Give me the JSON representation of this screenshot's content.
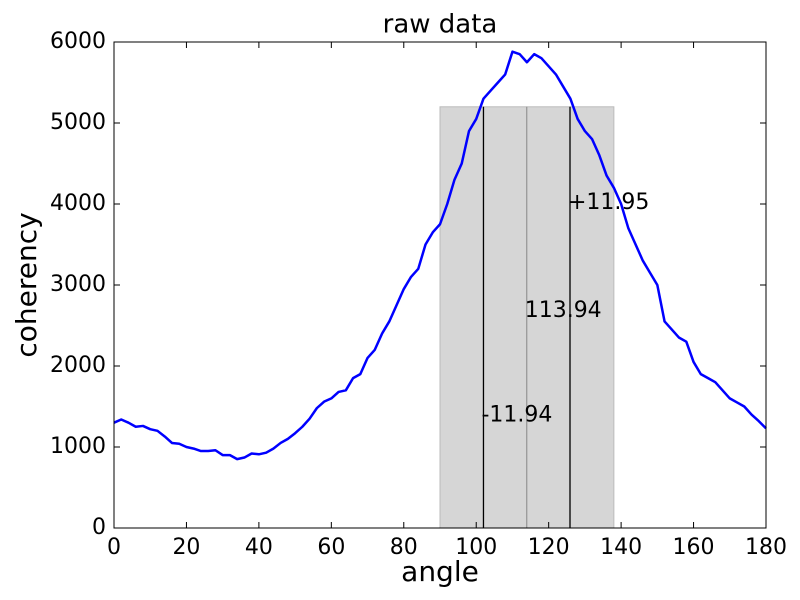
{
  "chart_data": {
    "type": "line",
    "title": "raw data",
    "xlabel": "angle",
    "ylabel": "coherency",
    "x": [
      0,
      2,
      4,
      6,
      8,
      10,
      12,
      14,
      16,
      18,
      20,
      22,
      24,
      26,
      28,
      30,
      32,
      34,
      36,
      38,
      40,
      42,
      44,
      46,
      48,
      50,
      52,
      54,
      56,
      58,
      60,
      62,
      64,
      66,
      68,
      70,
      72,
      74,
      76,
      78,
      80,
      82,
      84,
      86,
      88,
      90,
      92,
      94,
      96,
      98,
      100,
      102,
      104,
      106,
      108,
      110,
      112,
      114,
      116,
      118,
      120,
      122,
      124,
      126,
      128,
      130,
      132,
      134,
      136,
      138,
      140,
      142,
      144,
      146,
      148,
      150,
      152,
      154,
      156,
      158,
      160,
      162,
      164,
      166,
      168,
      170,
      172,
      174,
      176,
      178,
      180
    ],
    "series": [
      {
        "color": "#0000ff",
        "values": [
          1300,
          1340,
          1300,
          1250,
          1260,
          1220,
          1200,
          1130,
          1050,
          1040,
          1000,
          980,
          950,
          950,
          960,
          900,
          900,
          850,
          870,
          920,
          910,
          930,
          980,
          1050,
          1100,
          1170,
          1250,
          1350,
          1480,
          1560,
          1600,
          1680,
          1700,
          1850,
          1900,
          2100,
          2200,
          2400,
          2550,
          2750,
          2950,
          3100,
          3200,
          3500,
          3650,
          3750,
          4000,
          4300,
          4500,
          4900,
          5050,
          5300,
          5400,
          5500,
          5600,
          5880,
          5850,
          5750,
          5850,
          5800,
          5700,
          5600,
          5450,
          5300,
          5050,
          4900,
          4800,
          4600,
          4350,
          4200,
          4000,
          3700,
          3500,
          3300,
          3150,
          3000,
          2550,
          2450,
          2350,
          2300,
          2050,
          1900,
          1850,
          1800,
          1700,
          1600,
          1550,
          1500,
          1400,
          1320,
          1230
        ]
      }
    ],
    "span": {
      "x": [
        90,
        138
      ],
      "ymax": 5200,
      "color": "#d6d6d6"
    },
    "vlines": [
      {
        "x": 102,
        "ymax": 5200,
        "color": "#000000"
      },
      {
        "x": 113.94,
        "ymax": 5200,
        "color": "#999999"
      },
      {
        "x": 125.89,
        "ymax": 5200,
        "color": "#000000"
      }
    ],
    "annotations": [
      {
        "text": "-11.94",
        "x": 102,
        "y": 1390
      },
      {
        "text": "113.94",
        "x": 113.94,
        "y": 2680
      },
      {
        "text": "+11.95",
        "x": 125.89,
        "y": 4010
      }
    ],
    "xlim": [
      0,
      180
    ],
    "ylim": [
      0,
      6000
    ],
    "xticks": [
      0,
      20,
      40,
      60,
      80,
      100,
      120,
      140,
      160,
      180
    ],
    "yticks": [
      0,
      1000,
      2000,
      3000,
      4000,
      5000,
      6000
    ]
  }
}
